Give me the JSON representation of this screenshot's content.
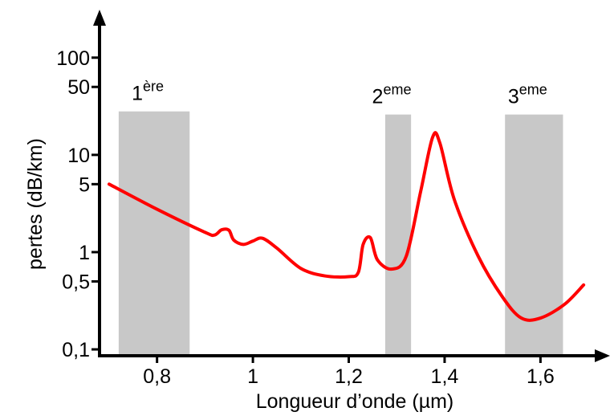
{
  "chart_data": {
    "type": "line",
    "xlabel": "Longueur d’onde (µm)",
    "ylabel": "pertes (dB/km)",
    "x": [
      0.7,
      0.8,
      0.9,
      0.92,
      0.935,
      0.95,
      0.96,
      0.98,
      1.0,
      1.02,
      1.05,
      1.1,
      1.15,
      1.2,
      1.22,
      1.23,
      1.245,
      1.26,
      1.29,
      1.32,
      1.35,
      1.375,
      1.39,
      1.42,
      1.47,
      1.52,
      1.56,
      1.6,
      1.65,
      1.69
    ],
    "series": [
      {
        "color": "#ff0000",
        "values": [
          5,
          2.76,
          1.6,
          1.5,
          1.7,
          1.68,
          1.33,
          1.2,
          1.3,
          1.39,
          1.1,
          0.68,
          0.57,
          0.56,
          0.62,
          1.2,
          1.41,
          0.83,
          0.67,
          0.91,
          4.2,
          15.2,
          13.3,
          3.5,
          0.91,
          0.35,
          0.21,
          0.21,
          0.29,
          0.46
        ]
      }
    ],
    "xlim": [
      0.68,
      1.73
    ],
    "xticks": [
      {
        "value": 0.8,
        "label": "0,8"
      },
      1,
      {
        "value": 1.2,
        "label": "1,2"
      },
      {
        "value": 1.4,
        "label": "1,4"
      },
      {
        "value": 1.6,
        "label": "1,6"
      }
    ],
    "ylim": [
      0.086,
      300
    ],
    "log_y": true,
    "yticks": [
      {
        "value": 0.1,
        "label": "0,1"
      },
      {
        "value": 0.5,
        "label": "0,5"
      },
      1,
      5,
      10,
      50,
      100
    ],
    "bands": [
      {
        "xmin": 0.72,
        "xmax": 0.868,
        "ymax": 28,
        "label": "1",
        "sup": "ère"
      },
      {
        "xmin": 1.276,
        "xmax": 1.33,
        "ymax": 26,
        "label": "2",
        "sup": "eme"
      },
      {
        "xmin": 1.526,
        "xmax": 1.647,
        "ymax": 26,
        "label": "3",
        "sup": "eme"
      }
    ],
    "band_color": "#c8c8c8"
  }
}
